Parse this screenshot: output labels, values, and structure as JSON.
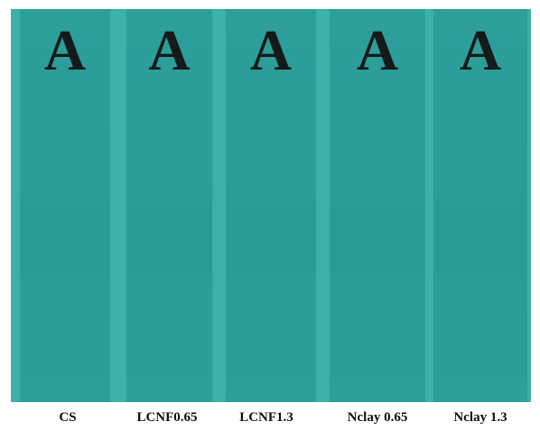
{
  "samples": [
    {
      "letter": "A",
      "label": "CS"
    },
    {
      "letter": "A",
      "label": "LCNF0.65"
    },
    {
      "letter": "A",
      "label": "LCNF1.3"
    },
    {
      "letter": "A",
      "label": "Nclay 0.65"
    },
    {
      "letter": "A",
      "label": "Nclay 1.3"
    }
  ]
}
